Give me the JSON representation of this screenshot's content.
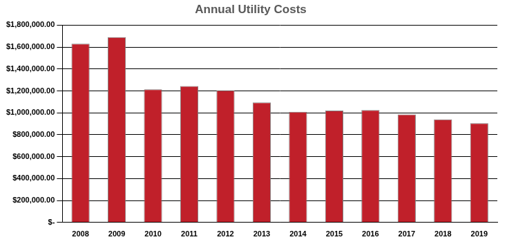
{
  "chart_data": {
    "type": "bar",
    "title": "Annual Utility Costs",
    "categories": [
      "2008",
      "2009",
      "2010",
      "2011",
      "2012",
      "2013",
      "2014",
      "2015",
      "2016",
      "2017",
      "2018",
      "2019"
    ],
    "values": [
      1630000,
      1690000,
      1215000,
      1245000,
      1205000,
      1095000,
      1010000,
      1020000,
      1025000,
      985000,
      940000,
      905000
    ],
    "color": "#c0202a",
    "ylim": [
      0,
      1800000
    ],
    "yticks": [
      {
        "value": 0,
        "label": "$-"
      },
      {
        "value": 200000,
        "label": "$200,000.00"
      },
      {
        "value": 400000,
        "label": "$400,000.00"
      },
      {
        "value": 600000,
        "label": "$600,000.00"
      },
      {
        "value": 800000,
        "label": "$800,000.00"
      },
      {
        "value": 1000000,
        "label": "$1,000,000.00"
      },
      {
        "value": 1200000,
        "label": "$1,200,000.00"
      },
      {
        "value": 1400000,
        "label": "$1,400,000.00"
      },
      {
        "value": 1600000,
        "label": "$1,600,000.00"
      },
      {
        "value": 1800000,
        "label": "$1,800,000.00"
      }
    ],
    "grid": true
  }
}
